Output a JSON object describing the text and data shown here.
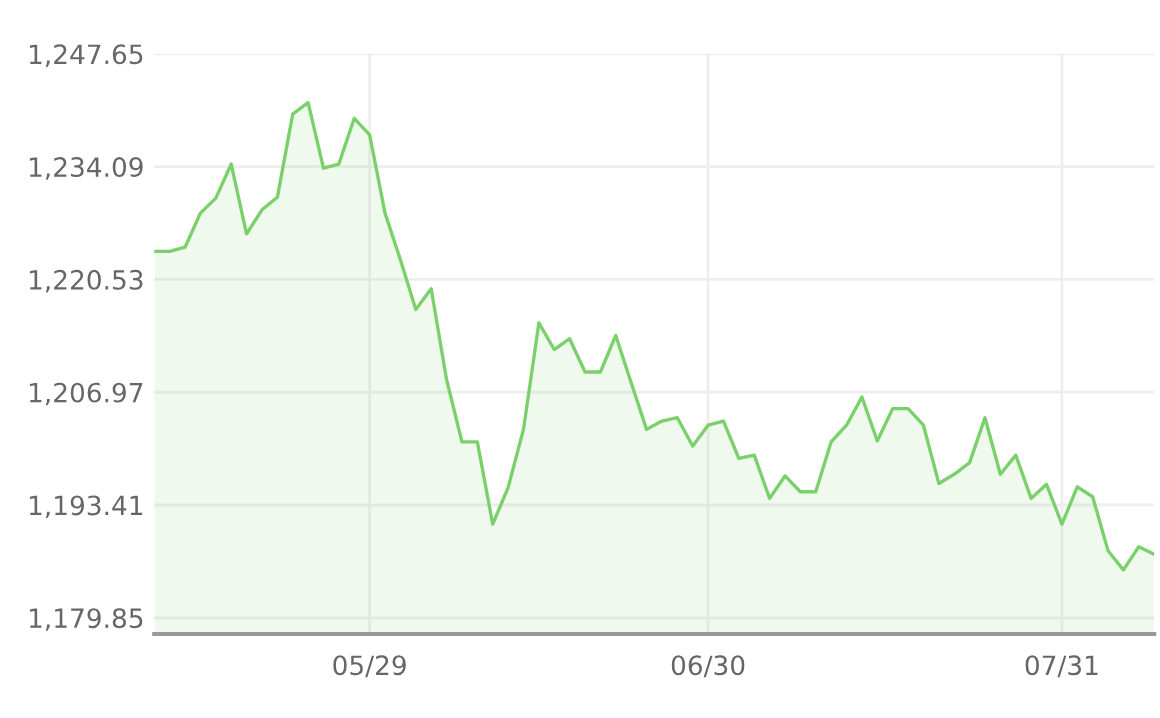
{
  "chart_data": {
    "type": "area",
    "categories": [
      null,
      null,
      null,
      null,
      null,
      null,
      null,
      null,
      null,
      null,
      null,
      null,
      null,
      null,
      "05/29",
      null,
      null,
      null,
      null,
      null,
      null,
      null,
      null,
      null,
      null,
      null,
      null,
      null,
      null,
      null,
      null,
      null,
      null,
      null,
      null,
      null,
      "06/30",
      null,
      null,
      null,
      null,
      null,
      null,
      null,
      null,
      null,
      null,
      null,
      null,
      null,
      null,
      null,
      null,
      null,
      null,
      null,
      null,
      null,
      null,
      "07/31",
      null,
      null,
      null,
      null,
      null,
      null
    ],
    "series": [
      {
        "color": "#7ad06a",
        "values": [
          1223.9,
          1223.9,
          1224.4,
          1228.5,
          1230.3,
          1234.4,
          1226.0,
          1228.9,
          1230.4,
          1240.4,
          1241.8,
          1233.9,
          1234.4,
          1239.9,
          1237.9,
          1228.5,
          1222.9,
          1216.9,
          1219.4,
          1208.5,
          1201.0,
          1201.0,
          1191.1,
          1195.5,
          1202.5,
          1215.3,
          1212.1,
          1213.4,
          1209.4,
          1209.4,
          1213.8,
          1208.1,
          1202.5,
          1203.5,
          1203.9,
          1200.5,
          1203.0,
          1203.5,
          1199.0,
          1199.4,
          1194.2,
          1196.9,
          1195.0,
          1195.0,
          1201.0,
          1203.0,
          1206.4,
          1201.1,
          1205.0,
          1205.0,
          1203.0,
          1196.0,
          1197.1,
          1198.5,
          1203.9,
          1197.1,
          1199.4,
          1194.2,
          1195.9,
          1191.1,
          1195.6,
          1194.4,
          1187.9,
          1185.6,
          1188.4,
          1187.5
        ]
      }
    ],
    "ylim": [
      1177.9,
      1247.65
    ],
    "yticks": [
      {
        "value": 1179.85,
        "label": "1,179.85"
      },
      {
        "value": 1193.41,
        "label": "1,193.41"
      },
      {
        "value": 1206.97,
        "label": "1,206.97"
      },
      {
        "value": 1220.53,
        "label": "1,220.53"
      },
      {
        "value": 1234.09,
        "label": "1,234.09"
      },
      {
        "value": 1247.65,
        "label": "1,247.65"
      }
    ],
    "grid": true,
    "legend": false
  }
}
